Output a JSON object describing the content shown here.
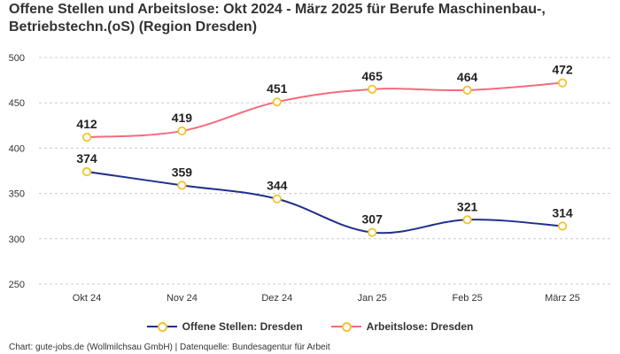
{
  "title": "Offene Stellen und Arbeitslose: Okt 2024 - März 2025 für Berufe Maschinenbau-, Betriebstechn.(oS) (Region Dresden)",
  "credit": "Chart: gute-jobs.de (Wollmilchsau GmbH) | Datenquelle: Bundesagentur für Arbeit",
  "colors": {
    "offene_stellen": "#1f2f8c",
    "arbeitslose": "#f26b7f",
    "marker": "#f2c231",
    "grid": "#cccccc"
  },
  "chart_data": {
    "type": "line",
    "categories": [
      "Okt 24",
      "Nov 24",
      "Dez 24",
      "Jan 25",
      "Feb 25",
      "März 25"
    ],
    "series": [
      {
        "name": "Offene Stellen: Dresden",
        "values": [
          374,
          359,
          344,
          307,
          321,
          314
        ],
        "color": "#1f2f8c"
      },
      {
        "name": "Arbeitslose: Dresden",
        "values": [
          412,
          419,
          451,
          465,
          464,
          472
        ],
        "color": "#f26b7f"
      }
    ],
    "ylim": [
      250,
      500
    ],
    "yticks": [
      250,
      300,
      350,
      400,
      450,
      500
    ],
    "grid": true,
    "legend_position": "bottom"
  }
}
